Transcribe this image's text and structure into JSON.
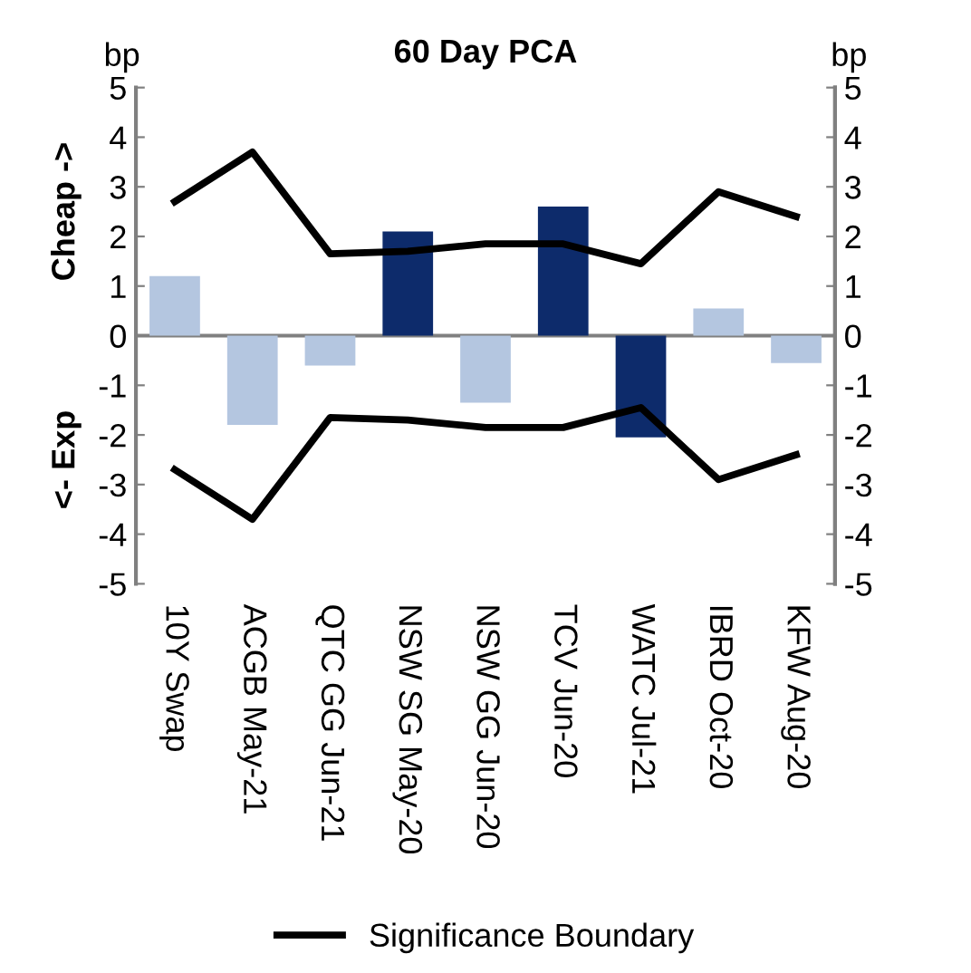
{
  "chart_data": {
    "type": "bar",
    "title": "60 Day PCA",
    "ylabel": "bp",
    "y2label": "bp",
    "annotations": [
      "Cheap ->",
      "<- Exp"
    ],
    "categories": [
      "10Y Swap",
      "ACGB May-21",
      "QTC GG Jun-21",
      "NSW SG May-20",
      "NSW GG Jun-20",
      "TCV Jun-20",
      "WATC Jul-21",
      "IBRD Oct-20",
      "KFW Aug-20"
    ],
    "series": [
      {
        "values": [
          1.2,
          -1.8,
          -0.6,
          2.1,
          -1.35,
          2.6,
          -2.05,
          0.55,
          -0.55
        ],
        "colors": [
          "#b4c6e0",
          "#b4c6e0",
          "#b4c6e0",
          "#0d2b6b",
          "#b4c6e0",
          "#0d2b6b",
          "#0d2b6b",
          "#b4c6e0",
          "#b4c6e0"
        ]
      },
      {
        "type": "line",
        "name": "Significance Boundary",
        "color": "#000000",
        "values": [
          2.7,
          3.7,
          1.65,
          1.7,
          1.85,
          1.85,
          1.45,
          2.9,
          2.4
        ]
      },
      {
        "type": "line",
        "color": "#000000",
        "values": [
          -2.7,
          -3.7,
          -1.65,
          -1.7,
          -1.85,
          -1.85,
          -1.45,
          -2.9,
          -2.4
        ]
      }
    ],
    "ylim": [
      -5,
      5
    ],
    "yticks": [
      -5,
      -4,
      -3,
      -2,
      -1,
      0,
      1,
      2,
      3,
      4,
      5
    ],
    "y2lim": [
      -5,
      5
    ],
    "y2ticks": [
      -5,
      -4,
      -3,
      -2,
      -1,
      0,
      1,
      2,
      3,
      4,
      5
    ],
    "ref_lines": [
      {
        "axis": "y",
        "value": 0,
        "color": "#808080"
      }
    ],
    "legend": "bottom",
    "grid": false
  }
}
